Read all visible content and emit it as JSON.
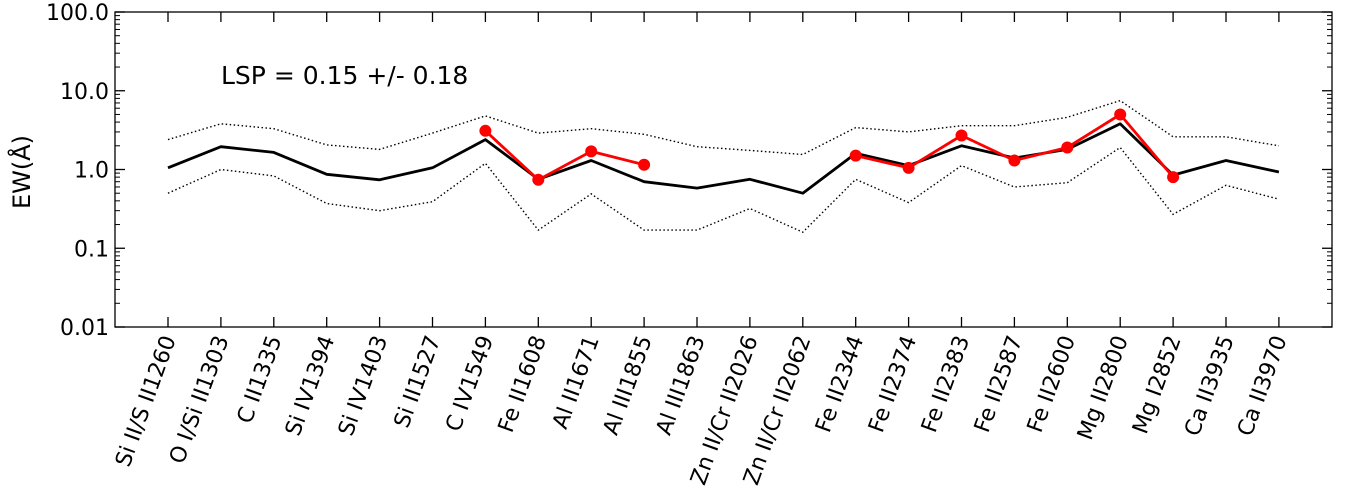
{
  "chart_data": {
    "type": "line",
    "ylabel": "EW(Å)",
    "yscale": "log",
    "ylim": [
      0.01,
      100
    ],
    "y_ticks": [
      "0.01",
      "0.1",
      "1.0",
      "10.0",
      "100.0"
    ],
    "annotation": "LSP = 0.15 +/- 0.18",
    "categories": [
      "Si II/S II1260",
      "O I/Si II1303",
      "C II1335",
      "Si IV1394",
      "Si IV1403",
      "Si II1527",
      "C IV1549",
      "Fe II1608",
      "Al II1671",
      "Al III1855",
      "Al III1863",
      "Zn II/Cr II2026",
      "Zn II/Cr II2062",
      "Fe II2344",
      "Fe II2374",
      "Fe II2383",
      "Fe II2587",
      "Fe II2600",
      "Mg II2800",
      "Mg I2852",
      "Ca II3935",
      "Ca II3970"
    ],
    "series": [
      {
        "style": "solid-black",
        "color": "#000000",
        "values": [
          1.05,
          1.95,
          1.65,
          0.87,
          0.74,
          1.05,
          2.4,
          0.75,
          1.3,
          0.7,
          0.58,
          0.75,
          0.5,
          1.6,
          1.12,
          2.0,
          1.4,
          1.8,
          3.8,
          0.85,
          1.3,
          0.93
        ]
      },
      {
        "style": "dotted-upper",
        "color": "#000000",
        "values": [
          2.4,
          3.8,
          3.3,
          2.05,
          1.8,
          2.9,
          4.8,
          2.9,
          3.3,
          2.8,
          1.95,
          1.75,
          1.55,
          3.4,
          3.0,
          3.6,
          3.6,
          4.6,
          7.5,
          2.6,
          2.6,
          2.0
        ]
      },
      {
        "style": "dotted-lower",
        "color": "#000000",
        "values": [
          0.5,
          1.0,
          0.83,
          0.37,
          0.3,
          0.39,
          1.2,
          0.17,
          0.49,
          0.17,
          0.17,
          0.32,
          0.16,
          0.75,
          0.38,
          1.12,
          0.6,
          0.68,
          1.9,
          0.27,
          0.63,
          0.42
        ]
      },
      {
        "style": "red-markers",
        "color": "#ff0000",
        "values": [
          null,
          null,
          null,
          null,
          null,
          null,
          3.1,
          0.74,
          1.7,
          1.15,
          null,
          null,
          null,
          1.5,
          1.05,
          2.7,
          1.3,
          1.9,
          5.0,
          0.8,
          null,
          null
        ]
      }
    ]
  }
}
